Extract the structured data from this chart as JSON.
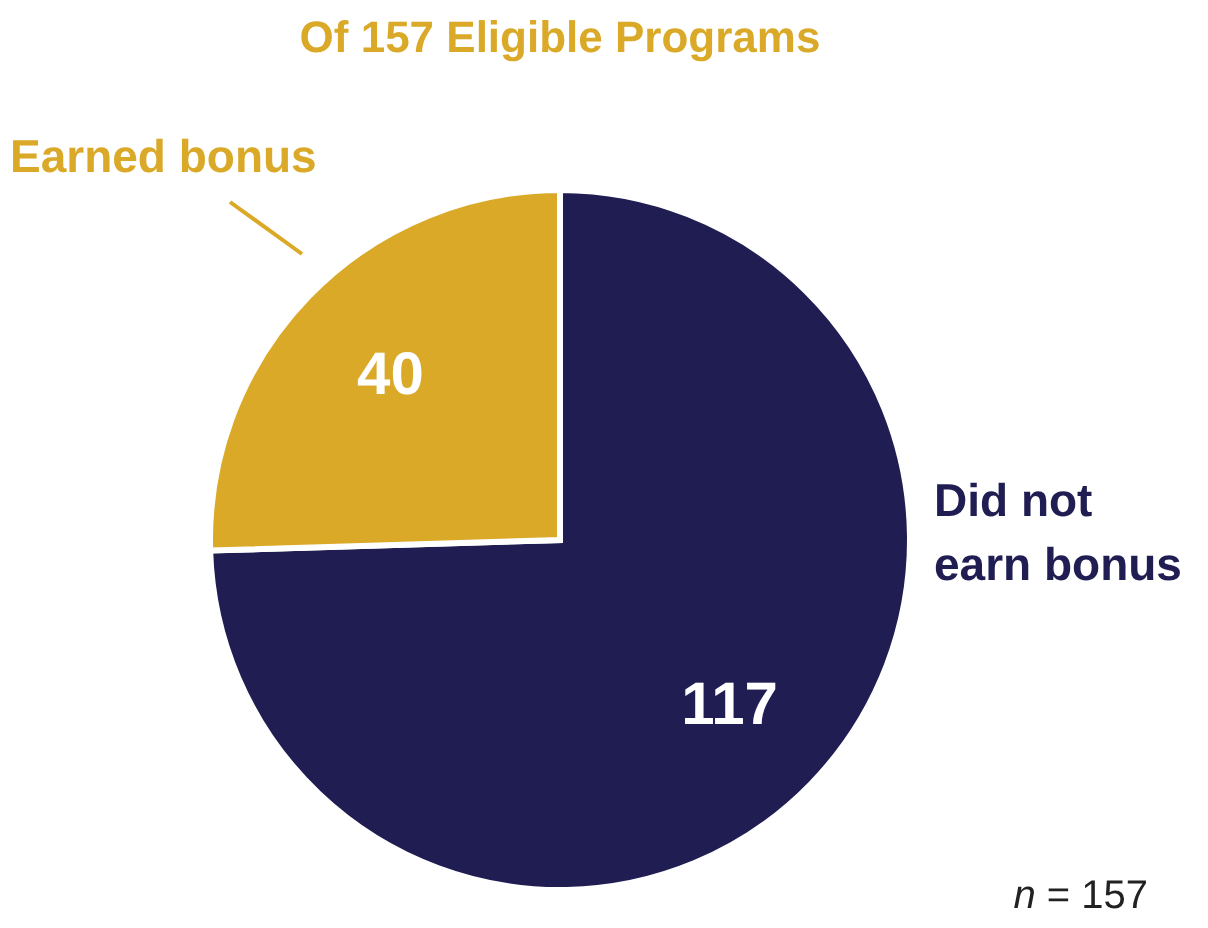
{
  "chart_data": {
    "type": "pie",
    "title": "Of 157 Eligible Programs",
    "categories": [
      "Did not earn bonus",
      "Earned bonus"
    ],
    "values": [
      117,
      40
    ],
    "colors": [
      "#201d52",
      "#daa928"
    ],
    "data_labels": true,
    "annotations": [
      "n = 157"
    ]
  }
}
